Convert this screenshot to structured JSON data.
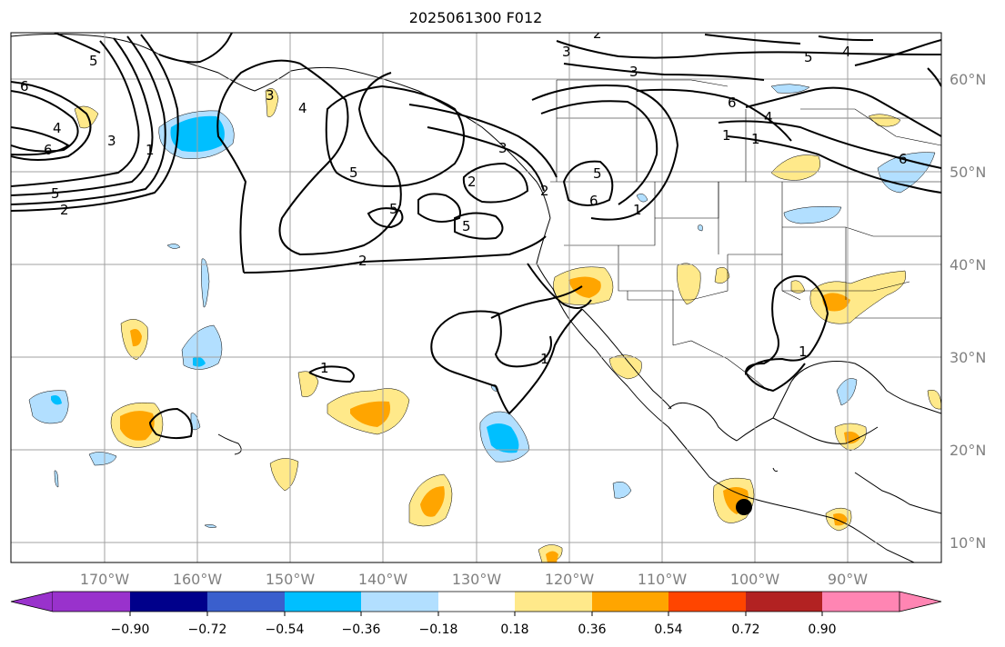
{
  "map": {
    "title": "2025061300 F012",
    "lon_labels": [
      "170°W",
      "160°W",
      "150°W",
      "140°W",
      "130°W",
      "120°W",
      "110°W",
      "100°W",
      "90°W"
    ],
    "lat_labels": [
      "60°N",
      "50°N",
      "40°N",
      "30°N",
      "20°N",
      "10°N"
    ],
    "contour_labels": [
      "6",
      "4",
      "3",
      "6",
      "5",
      "2",
      "5",
      "4",
      "3",
      "2",
      "1",
      "5",
      "5",
      "2",
      "3",
      "2",
      "3",
      "3",
      "5",
      "2",
      "1",
      "6",
      "5",
      "6",
      "4",
      "1",
      "1",
      "1",
      "1",
      "1",
      "6",
      "5",
      "4"
    ],
    "marker": "filled-black-circle"
  },
  "colorbar": {
    "tick_labels": [
      "−0.90",
      "−0.72",
      "−0.54",
      "−0.36",
      "−0.18",
      "0.18",
      "0.36",
      "0.54",
      "0.72",
      "0.90"
    ],
    "colors": [
      "#9932cc",
      "#00008b",
      "#3a5fcd",
      "#00bfff",
      "#b2dfff",
      "#ffffff",
      "#ffe98a",
      "#ffa500",
      "#ff4500",
      "#b22222",
      "#ff85b3"
    ]
  }
}
